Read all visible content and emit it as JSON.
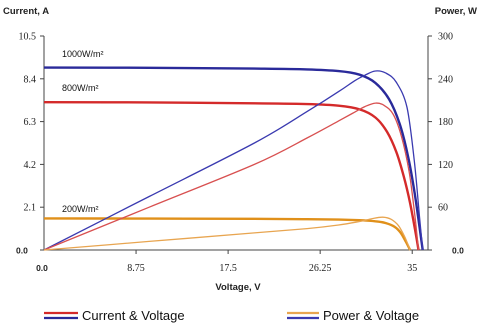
{
  "chart_data": {
    "type": "line",
    "xlabel": "Voltage, V",
    "ylabel_left": "Current, A",
    "ylabel_right": "Power, W",
    "xlim": [
      0,
      36.5
    ],
    "ylim_left": [
      0,
      10.5
    ],
    "ylim_right": [
      0,
      300
    ],
    "x_ticks": [
      "0.0",
      "8.75",
      "17.5",
      "26.25",
      "35"
    ],
    "x_tick_values": [
      0,
      8.75,
      17.5,
      26.25,
      35
    ],
    "y_left_ticks": [
      "0.0",
      "2.1",
      "4.2",
      "6.3",
      "8.4",
      "10.5"
    ],
    "y_left_tick_values": [
      0,
      2.1,
      4.2,
      6.3,
      8.4,
      10.5
    ],
    "y_right_ticks": [
      "0.0",
      "60",
      "120",
      "180",
      "240",
      "300"
    ],
    "y_right_tick_values": [
      0,
      60,
      120,
      180,
      240,
      300
    ],
    "grid": false,
    "series": [
      {
        "name": "1000W/m²",
        "kind": "current",
        "color": "#2a2a9a",
        "x": [
          0,
          10,
          20,
          25,
          28,
          30,
          31.5,
          32.8,
          33.8,
          34.6,
          35.2,
          35.7,
          36.0
        ],
        "y": [
          8.95,
          8.94,
          8.9,
          8.86,
          8.78,
          8.6,
          8.2,
          7.4,
          6.2,
          4.6,
          2.9,
          1.1,
          0
        ]
      },
      {
        "name": "800W/m²",
        "kind": "current",
        "color": "#d42a2a",
        "x": [
          0,
          10,
          20,
          25,
          28,
          30,
          31.5,
          32.6,
          33.5,
          34.2,
          34.8,
          35.3,
          35.6
        ],
        "y": [
          7.25,
          7.24,
          7.2,
          7.16,
          7.08,
          6.9,
          6.5,
          5.8,
          4.8,
          3.6,
          2.3,
          0.9,
          0
        ]
      },
      {
        "name": "200W/m²",
        "kind": "current",
        "color": "#e0901a",
        "x": [
          0,
          10,
          20,
          25,
          28,
          30,
          31.5,
          32.5,
          33.3,
          33.9,
          34.4,
          34.8
        ],
        "y": [
          1.55,
          1.54,
          1.53,
          1.51,
          1.49,
          1.46,
          1.41,
          1.32,
          1.15,
          0.85,
          0.4,
          0
        ]
      },
      {
        "kind": "power",
        "color": "#3a3ab0",
        "x": [
          0,
          10,
          20,
          25,
          28,
          29.5,
          30.5,
          31.5,
          32.5,
          33.5,
          34.5,
          35.2,
          35.7,
          36.0
        ],
        "y": [
          0,
          75,
          150,
          194,
          222,
          237,
          245,
          251,
          248,
          235,
          200,
          125,
          45,
          0
        ]
      },
      {
        "kind": "power",
        "color": "#d85050",
        "x": [
          0,
          10,
          20,
          25,
          28,
          29.5,
          30.5,
          31.5,
          32.3,
          33.2,
          34.0,
          34.7,
          35.2,
          35.6
        ],
        "y": [
          0,
          60,
          120,
          157,
          181,
          193,
          201,
          206,
          203,
          190,
          158,
          110,
          55,
          0
        ]
      },
      {
        "kind": "power",
        "color": "#e8a550",
        "x": [
          0,
          10,
          20,
          25,
          28,
          30,
          31.2,
          32.2,
          33.0,
          33.7,
          34.3,
          34.8
        ],
        "y": [
          0,
          12,
          24,
          30,
          35,
          40,
          44,
          46,
          43,
          34,
          18,
          0
        ]
      }
    ],
    "legend": {
      "placement": "bottom",
      "entries": [
        {
          "label": "Current & Voltage",
          "colors": [
            "#d42a2a",
            "#2a2a9a"
          ]
        },
        {
          "label": "Power & Voltage",
          "colors": [
            "#e8a550",
            "#3a3ab0"
          ]
        }
      ]
    }
  }
}
